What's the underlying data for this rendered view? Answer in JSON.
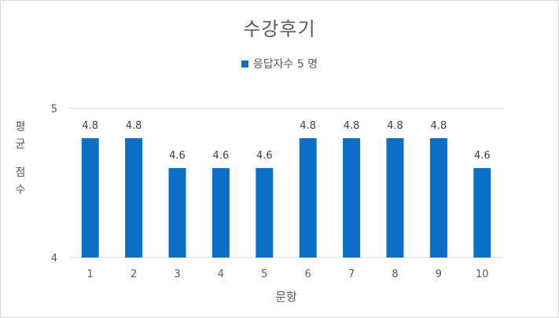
{
  "chart_data": {
    "type": "bar",
    "title": "수강후기",
    "xlabel": "문항",
    "ylabel_chars": [
      "평",
      "균",
      "점",
      "수"
    ],
    "categories": [
      "1",
      "2",
      "3",
      "4",
      "5",
      "6",
      "7",
      "8",
      "9",
      "10"
    ],
    "series": [
      {
        "name": "응답자수 5 명",
        "values": [
          4.8,
          4.8,
          4.6,
          4.6,
          4.6,
          4.8,
          4.8,
          4.8,
          4.8,
          4.6
        ],
        "color": "#0e6fc7"
      }
    ],
    "ylim": [
      4,
      5
    ],
    "yticks": [
      "4",
      "5"
    ],
    "grid": true,
    "legend_position": "top"
  }
}
